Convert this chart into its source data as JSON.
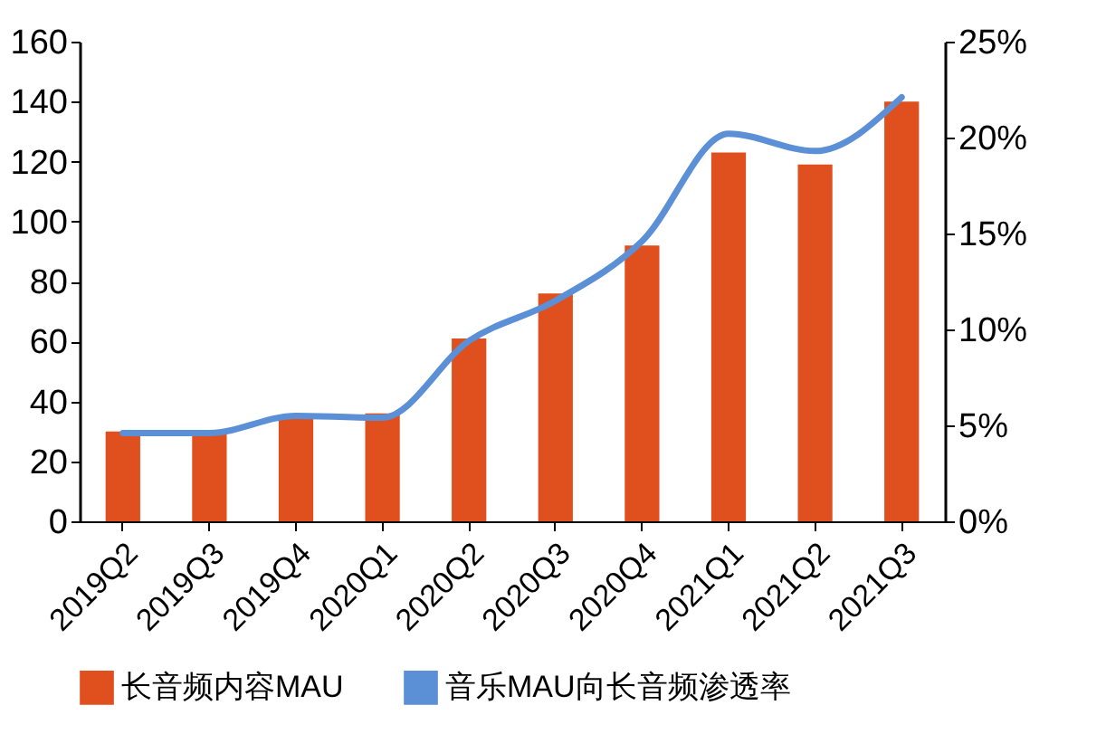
{
  "chart_data": {
    "type": "bar",
    "categories": [
      "2019Q2",
      "2019Q3",
      "2019Q4",
      "2020Q1",
      "2020Q2",
      "2020Q3",
      "2020Q4",
      "2021Q1",
      "2021Q2",
      "2021Q3"
    ],
    "series": [
      {
        "name": "长音频内容MAU",
        "color": "#e0501e",
        "values": [
          30,
          30,
          35,
          36,
          61,
          76,
          92,
          123,
          119,
          140
        ]
      },
      {
        "name": "音乐MAU向长音频渗透率",
        "type": "line",
        "axis": "y2",
        "color": "#5b8fd6",
        "values": [
          4.6,
          4.6,
          5.5,
          5.4,
          9.4,
          11.5,
          14.6,
          20.2,
          19.3,
          22.1
        ]
      }
    ],
    "ylim": [
      0,
      160
    ],
    "yticks": [
      0,
      20,
      40,
      60,
      80,
      100,
      120,
      140,
      160
    ],
    "y2lim": [
      0,
      25
    ],
    "y2ticks": [
      {
        "value": 0,
        "label": "0%"
      },
      {
        "value": 5,
        "label": "5%"
      },
      {
        "value": 10,
        "label": "10%"
      },
      {
        "value": 15,
        "label": "15%"
      },
      {
        "value": 20,
        "label": "20%"
      },
      {
        "value": 25,
        "label": "25%"
      }
    ],
    "legend": "bottom",
    "grid": false,
    "marker": "none",
    "line_style": "solid"
  }
}
